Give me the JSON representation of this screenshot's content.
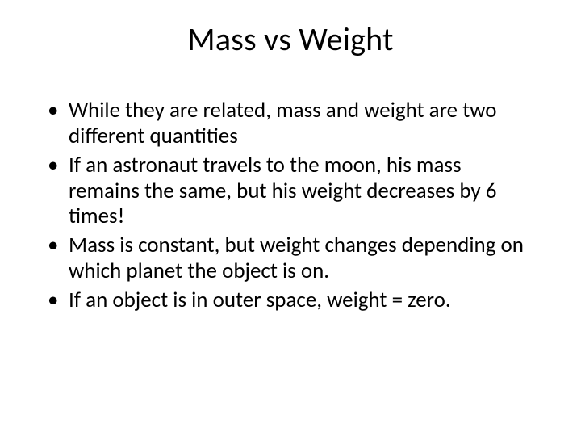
{
  "slide": {
    "title": "Mass vs Weight",
    "bullets": [
      "While they are related, mass and weight are two different quantities",
      "If an astronaut travels to the moon, his mass remains the same, but his weight decreases by 6 times!",
      "Mass is constant, but weight changes depending on which planet the object is on.",
      "If an object is in outer space, weight = zero."
    ],
    "background_color": "#ffffff",
    "text_color": "#000000",
    "title_fontsize": 40,
    "body_fontsize": 27,
    "font_family": "Calibri"
  }
}
